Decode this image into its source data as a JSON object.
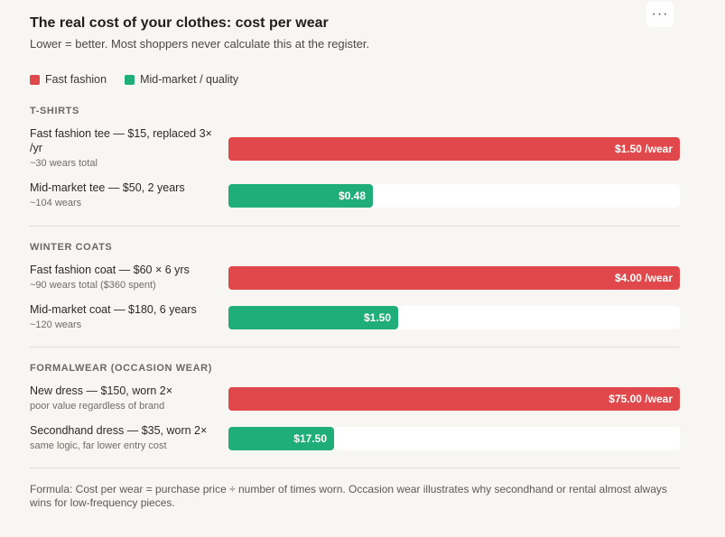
{
  "header": {
    "title": "The real cost of your clothes: cost per wear",
    "subtitle": "Lower = better. Most shoppers never calculate this at the register.",
    "menu_label": "···"
  },
  "legend": [
    {
      "label": "Fast fashion",
      "color": "#e0484b"
    },
    {
      "label": "Mid-market / quality",
      "color": "#1fae7a"
    }
  ],
  "chart_data": {
    "type": "bar",
    "orientation": "horizontal",
    "title": "The real cost of your clothes: cost per wear",
    "subtitle": "Lower = better. Most shoppers never calculate this at the register.",
    "legend": [
      "Fast fashion",
      "Mid-market / quality"
    ],
    "sections": [
      {
        "name": "T-SHIRTS",
        "max": 1.5,
        "rows": [
          {
            "label": "Fast fashion tee — $15, replaced 3× /yr",
            "sub": "~30 wears total",
            "value": 1.5,
            "value_label": "$1.50 /wear",
            "series": "Fast fashion"
          },
          {
            "label": "Mid-market tee — $50, 2 years",
            "sub": "~104 wears",
            "value": 0.48,
            "value_label": "$0.48",
            "series": "Mid-market / quality"
          }
        ]
      },
      {
        "name": "WINTER COATS",
        "max": 4.0,
        "rows": [
          {
            "label": "Fast fashion coat — $60 × 6 yrs",
            "sub": "~90 wears total ($360 spent)",
            "value": 4.0,
            "value_label": "$4.00 /wear",
            "series": "Fast fashion"
          },
          {
            "label": "Mid-market coat — $180, 6 years",
            "sub": "~120 wears",
            "value": 1.5,
            "value_label": "$1.50",
            "series": "Mid-market / quality"
          }
        ]
      },
      {
        "name": "FORMALWEAR (OCCASION WEAR)",
        "max": 75.0,
        "rows": [
          {
            "label": "New dress — $150, worn 2×",
            "sub": "poor value regardless of brand",
            "value": 75.0,
            "value_label": "$75.00 /wear",
            "series": "Fast fashion"
          },
          {
            "label": "Secondhand dress — $35, worn 2×",
            "sub": "same logic, far lower entry cost",
            "value": 17.5,
            "value_label": "$17.50",
            "series": "Mid-market / quality"
          }
        ]
      }
    ]
  },
  "footer": {
    "formula": "Formula: Cost per wear = purchase price ÷ number of times worn. Occasion wear illustrates why secondhand or rental almost always wins for low-frequency pieces."
  }
}
